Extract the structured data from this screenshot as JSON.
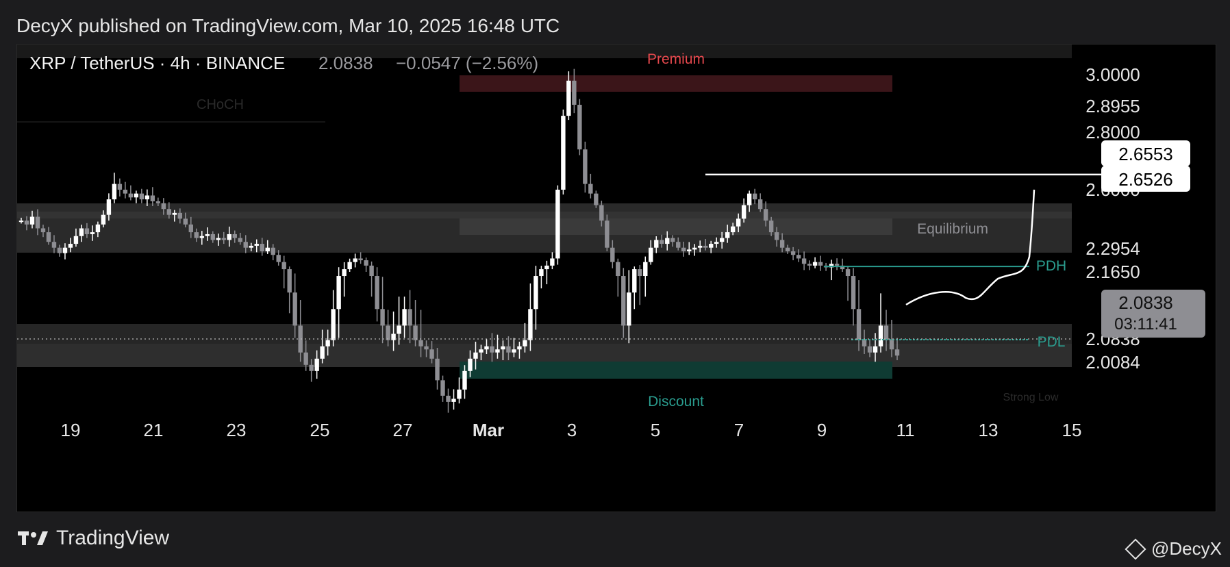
{
  "header": {
    "text": "DecyX published on TradingView.com, Mar 10, 2025 16:48 UTC"
  },
  "symbol": {
    "name": "XRP / TetherUS · 4h · BINANCE",
    "price": "2.0838",
    "change": "−0.0547 (−2.56%)"
  },
  "chart_data": {
    "type": "candlestick",
    "x_labels": [
      "19",
      "21",
      "23",
      "25",
      "27",
      "Mar",
      "3",
      "5",
      "7",
      "9",
      "11",
      "13",
      "15"
    ],
    "y_tick_labels": [
      "3.0000",
      "2.8955",
      "2.8000",
      "2.6000",
      "2.2954",
      "2.1650",
      "2.0084"
    ],
    "price_tags": [
      {
        "label": "2.6553",
        "value": 2.6553,
        "style": "white"
      },
      {
        "label": "2.6526",
        "value": 2.6526,
        "style": "white"
      },
      {
        "label": "2.0838",
        "value": 2.0838,
        "style": "gray"
      },
      {
        "label": "2.0838",
        "value": 2.0838,
        "style": "plain"
      }
    ],
    "countdown": "03:11:41",
    "zone_labels": {
      "premium": "Premium",
      "equilibrium": "Equilibrium",
      "discount": "Discount",
      "choch": "CHoCH",
      "pdh": "PDH",
      "pdl": "PDL",
      "strong_low": "Strong Low"
    },
    "key_levels": {
      "high_line": 2.6526,
      "pdh": 2.195,
      "pdl": 2.0838,
      "current": 2.0838
    },
    "candles_close": [
      2.44,
      2.42,
      2.46,
      2.4,
      2.38,
      2.33,
      2.3,
      2.27,
      2.3,
      2.32,
      2.36,
      2.4,
      2.37,
      2.38,
      2.42,
      2.47,
      2.55,
      2.62,
      2.6,
      2.58,
      2.56,
      2.58,
      2.55,
      2.57,
      2.54,
      2.53,
      2.5,
      2.47,
      2.48,
      2.45,
      2.42,
      2.38,
      2.35,
      2.36,
      2.37,
      2.34,
      2.35,
      2.34,
      2.37,
      2.35,
      2.33,
      2.3,
      2.31,
      2.32,
      2.28,
      2.3,
      2.26,
      2.22,
      2.18,
      2.14,
      2.1,
      2.04,
      2.0,
      1.98,
      2.02,
      2.06,
      2.08,
      2.12,
      2.16,
      2.18,
      2.22,
      2.24,
      2.23,
      2.2,
      2.16,
      2.12,
      2.1,
      2.08,
      2.09,
      2.1,
      2.12,
      2.1,
      2.08,
      2.06,
      2.05,
      2.02,
      1.95,
      1.9,
      1.88,
      1.89,
      1.92,
      1.98,
      2.02,
      2.04,
      2.05,
      2.06,
      2.04,
      2.05,
      2.06,
      2.04,
      2.05,
      2.06,
      2.08,
      2.12,
      2.16,
      2.18,
      2.2,
      2.24,
      2.6,
      2.86,
      2.98,
      2.9,
      2.74,
      2.62,
      2.58,
      2.52,
      2.44,
      2.3,
      2.22,
      2.16,
      2.1,
      2.14,
      2.18,
      2.16,
      2.22,
      2.3,
      2.34,
      2.32,
      2.35,
      2.33,
      2.3,
      2.28,
      2.29,
      2.3,
      2.31,
      2.3,
      2.32,
      2.33,
      2.35,
      2.38,
      2.41,
      2.45,
      2.52,
      2.58,
      2.55,
      2.5,
      2.44,
      2.38,
      2.34,
      2.3,
      2.28,
      2.26,
      2.24,
      2.21,
      2.2,
      2.22,
      2.2,
      2.19,
      2.21,
      2.2,
      2.18,
      2.16,
      2.12,
      2.08,
      2.06,
      2.04,
      2.06,
      2.1,
      2.08,
      2.05,
      2.03
    ],
    "projection_note": "hand-drawn projection path"
  },
  "footer": {
    "brand": "TradingView",
    "author": "@DecyX"
  }
}
